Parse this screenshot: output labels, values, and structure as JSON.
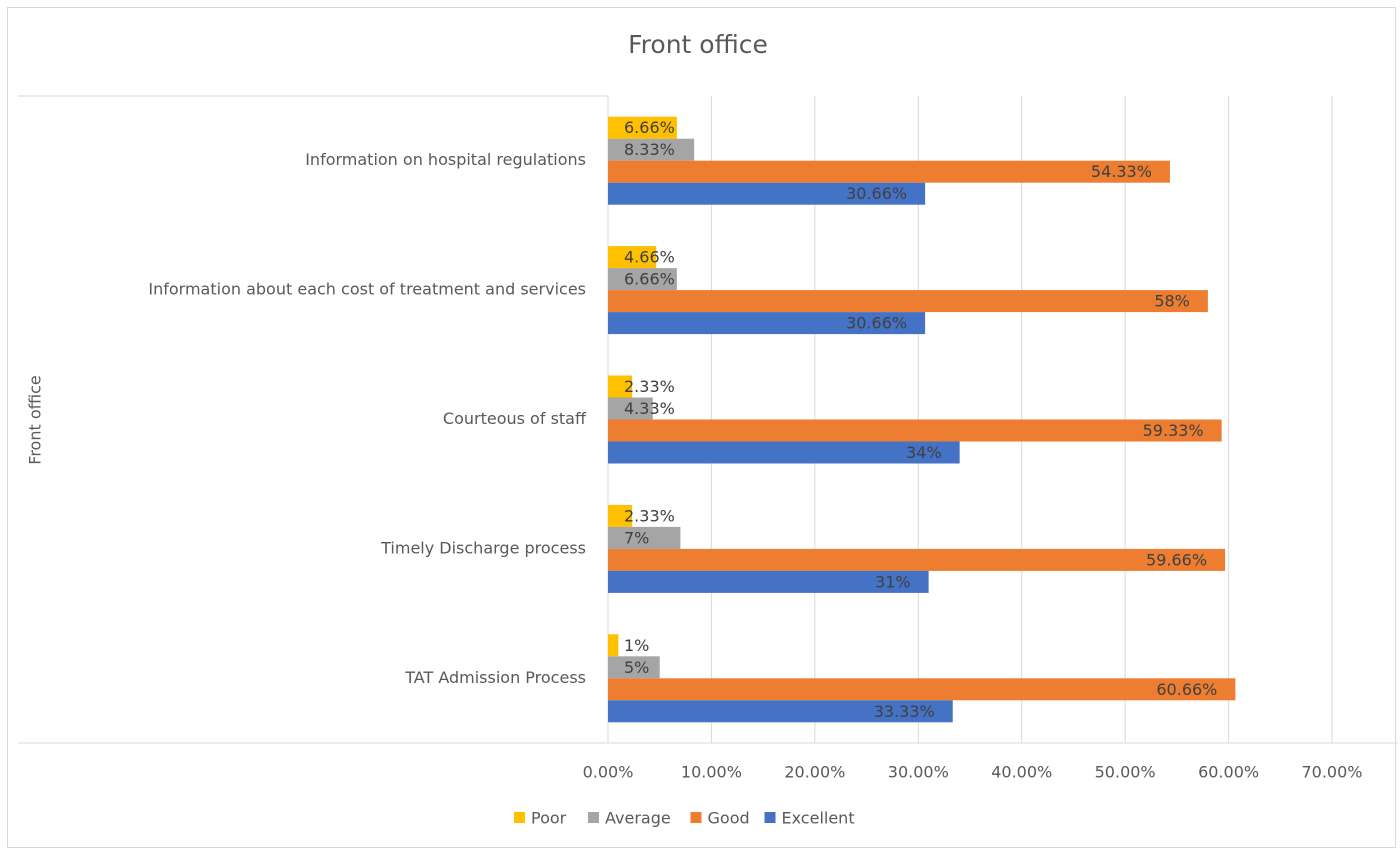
{
  "chart_data": {
    "type": "bar",
    "orientation": "horizontal",
    "title": "Front office",
    "y_label": "Front office",
    "categories": [
      "Information on hospital regulations",
      "Information about each cost of treatment and services",
      "Courteous of staff",
      "Timely Discharge process",
      "TAT Admission Process"
    ],
    "series": [
      {
        "name": "Poor",
        "color": "#ffc000",
        "values": [
          6.66,
          4.66,
          2.33,
          2.33,
          1
        ],
        "value_labels": [
          "6.66%",
          "4.66%",
          "2.33%",
          "2.33%",
          "1%"
        ]
      },
      {
        "name": "Average",
        "color": "#a5a5a5",
        "values": [
          8.33,
          6.66,
          4.33,
          7,
          5
        ],
        "value_labels": [
          "8.33%",
          "6.66%",
          "4.33%",
          "7%",
          "5%"
        ]
      },
      {
        "name": "Good",
        "color": "#ed7d31",
        "values": [
          54.33,
          58,
          59.33,
          59.66,
          60.66
        ],
        "value_labels": [
          "54.33%",
          "58%",
          "59.33%",
          "59.66%",
          "60.66%"
        ]
      },
      {
        "name": "Excellent",
        "color": "#4472c4",
        "values": [
          30.66,
          30.66,
          34,
          31,
          33.33
        ],
        "value_labels": [
          "30.66%",
          "30.66%",
          "34%",
          "31%",
          "33.33%"
        ]
      }
    ],
    "xlim": [
      0,
      70
    ],
    "xticks": [
      {
        "value": 0,
        "label": "0.00%"
      },
      {
        "value": 10,
        "label": "10.00%"
      },
      {
        "value": 20,
        "label": "20.00%"
      },
      {
        "value": 30,
        "label": "30.00%"
      },
      {
        "value": 40,
        "label": "40.00%"
      },
      {
        "value": 50,
        "label": "50.00%"
      },
      {
        "value": 60,
        "label": "60.00%"
      },
      {
        "value": 70,
        "label": "70.00%"
      }
    ],
    "grid": true,
    "legend": "bottom"
  }
}
